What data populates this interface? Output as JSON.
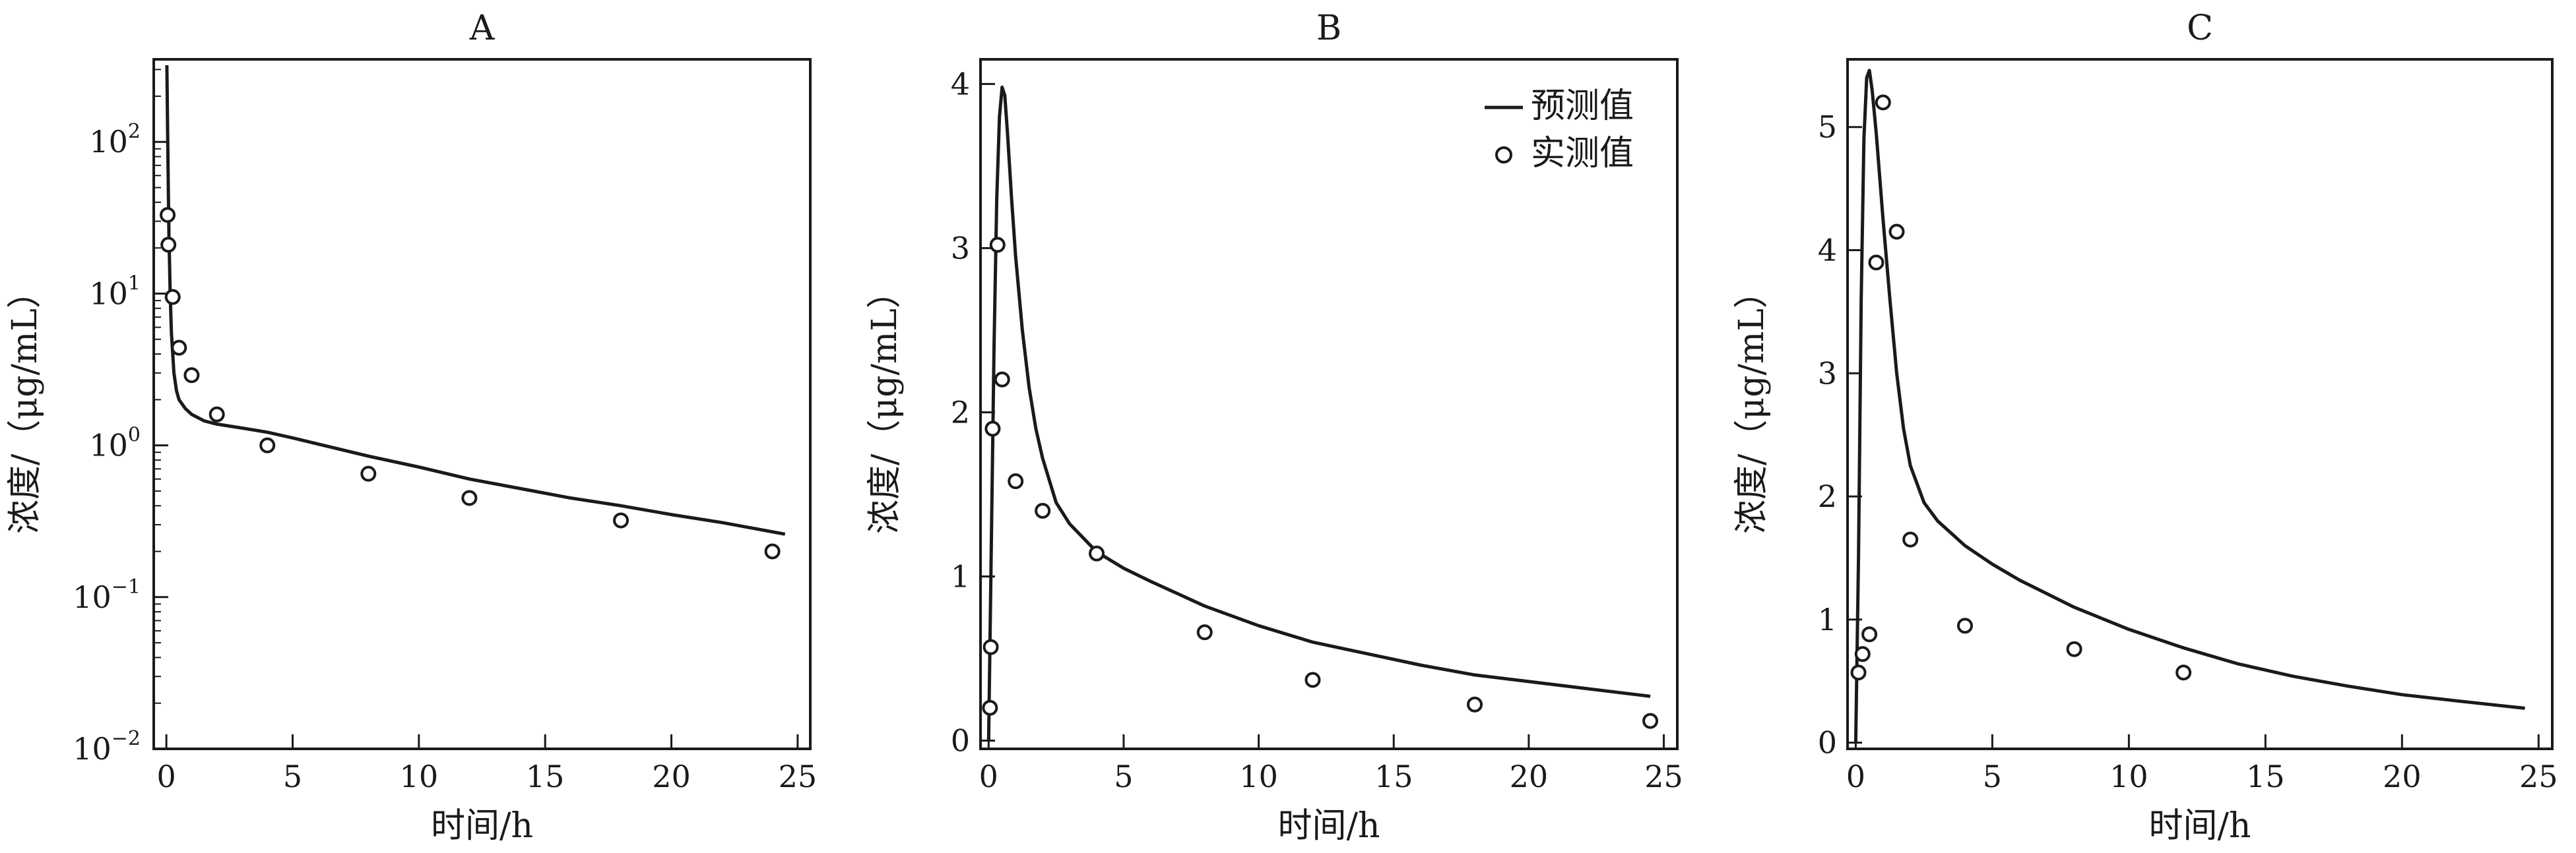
{
  "chart_data": [
    {
      "type": "line",
      "title": "A",
      "xlabel": "时间/h",
      "ylabel": "浓度/（μg/mL）",
      "xlim": [
        -0.5,
        25.5
      ],
      "ylim": [
        0.01,
        350
      ],
      "yscale": "log",
      "xticks": [
        "0",
        "5",
        "10",
        "15",
        "20",
        "25"
      ],
      "yticks": [
        {
          "value": 0.01,
          "base": "10",
          "exp": "−2"
        },
        {
          "value": 0.1,
          "base": "10",
          "exp": "−1"
        },
        {
          "value": 1,
          "base": "10",
          "exp": "0"
        },
        {
          "value": 10,
          "base": "10",
          "exp": "1"
        },
        {
          "value": 100,
          "base": "10",
          "exp": "2"
        }
      ],
      "grid": false,
      "series": [
        {
          "name": "预测值",
          "kind": "line",
          "x": [
            0.02,
            0.05,
            0.08,
            0.1,
            0.15,
            0.2,
            0.3,
            0.4,
            0.5,
            0.75,
            1,
            1.5,
            2,
            3,
            4,
            5,
            6,
            8,
            10,
            12,
            14,
            16,
            18,
            20,
            22,
            24.5
          ],
          "y": [
            320,
            120,
            45,
            25,
            10,
            5.5,
            3.0,
            2.3,
            2.0,
            1.75,
            1.6,
            1.45,
            1.38,
            1.3,
            1.22,
            1.12,
            1.02,
            0.85,
            0.72,
            0.6,
            0.52,
            0.45,
            0.4,
            0.35,
            0.31,
            0.26
          ]
        },
        {
          "name": "实测值",
          "kind": "scatter",
          "x": [
            0.05,
            0.08,
            0.25,
            0.5,
            1,
            2,
            4,
            8,
            12,
            18,
            24
          ],
          "y": [
            33,
            21,
            9.5,
            4.4,
            2.9,
            1.6,
            1.0,
            0.65,
            0.45,
            0.32,
            0.2
          ]
        }
      ]
    },
    {
      "type": "line",
      "title": "B",
      "xlabel": "时间/h",
      "ylabel": "浓度/（μg/mL）",
      "xlim": [
        -0.3,
        25.5
      ],
      "ylim": [
        -0.05,
        4.15
      ],
      "xticks": [
        "0",
        "5",
        "10",
        "15",
        "20",
        "25"
      ],
      "yticks": [
        "0",
        "1",
        "2",
        "3",
        "4"
      ],
      "grid": false,
      "legend": {
        "position": "top-right",
        "line_label": "预测值",
        "marker_label": "实测值"
      },
      "series": [
        {
          "name": "预测值",
          "kind": "line",
          "x": [
            0,
            0.1,
            0.2,
            0.3,
            0.4,
            0.5,
            0.6,
            0.7,
            0.85,
            1,
            1.25,
            1.5,
            1.75,
            2,
            2.5,
            3,
            4,
            5,
            6,
            8,
            10,
            12,
            14,
            16,
            18,
            20,
            22,
            24.5
          ],
          "y": [
            0,
            1.2,
            2.4,
            3.3,
            3.8,
            3.98,
            3.93,
            3.7,
            3.3,
            2.95,
            2.5,
            2.15,
            1.9,
            1.72,
            1.45,
            1.32,
            1.15,
            1.05,
            0.97,
            0.82,
            0.7,
            0.6,
            0.53,
            0.46,
            0.4,
            0.36,
            0.32,
            0.27
          ]
        },
        {
          "name": "实测值",
          "kind": "scatter",
          "x": [
            0.05,
            0.08,
            0.15,
            0.33,
            0.5,
            1,
            2,
            4,
            8,
            12,
            18,
            24.5
          ],
          "y": [
            0.2,
            0.57,
            1.9,
            3.02,
            2.2,
            1.58,
            1.4,
            1.14,
            0.66,
            0.37,
            0.22,
            0.12
          ]
        }
      ]
    },
    {
      "type": "line",
      "title": "C",
      "xlabel": "时间/h",
      "ylabel": "浓度/（μg/mL）",
      "xlim": [
        -0.3,
        25.5
      ],
      "ylim": [
        -0.05,
        5.55
      ],
      "xticks": [
        "0",
        "5",
        "10",
        "15",
        "20",
        "25"
      ],
      "yticks": [
        "0",
        "1",
        "2",
        "3",
        "4",
        "5"
      ],
      "grid": false,
      "series": [
        {
          "name": "预测值",
          "kind": "line",
          "x": [
            0,
            0.1,
            0.2,
            0.3,
            0.4,
            0.5,
            0.6,
            0.75,
            1,
            1.25,
            1.5,
            1.75,
            2,
            2.5,
            3,
            4,
            5,
            6,
            8,
            10,
            12,
            14,
            16,
            18,
            20,
            22,
            24.5
          ],
          "y": [
            0,
            1.5,
            3.6,
            4.9,
            5.4,
            5.46,
            5.3,
            4.95,
            4.25,
            3.6,
            3.0,
            2.55,
            2.25,
            1.95,
            1.8,
            1.6,
            1.45,
            1.32,
            1.1,
            0.92,
            0.77,
            0.64,
            0.54,
            0.46,
            0.39,
            0.34,
            0.28
          ]
        },
        {
          "name": "实测值",
          "kind": "scatter",
          "x": [
            0.1,
            0.25,
            0.5,
            0.75,
            1,
            1.5,
            2,
            4,
            8,
            12
          ],
          "y": [
            0.57,
            0.72,
            0.88,
            3.9,
            5.2,
            4.15,
            1.65,
            0.95,
            0.76,
            0.57
          ]
        }
      ]
    }
  ]
}
